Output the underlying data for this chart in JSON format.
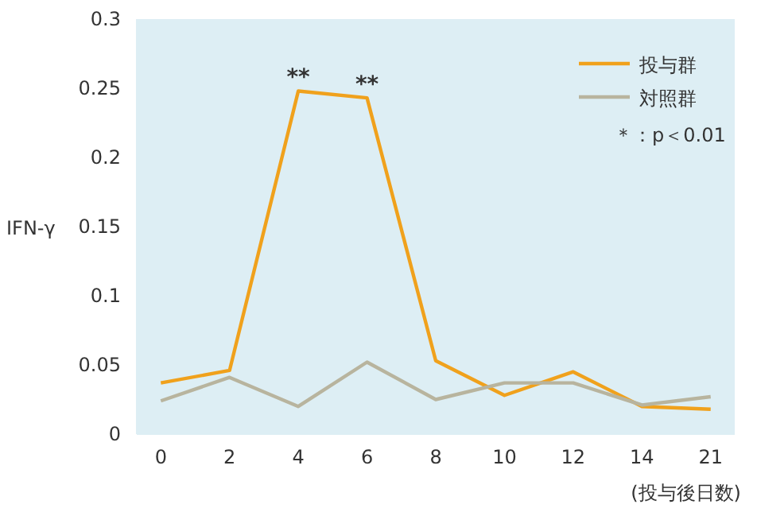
{
  "chart_data": {
    "type": "line",
    "ylabel": "IFN-γ",
    "xlabel": "(投与後日数)",
    "categories": [
      "0",
      "2",
      "4",
      "6",
      "8",
      "10",
      "12",
      "14",
      "21"
    ],
    "series": [
      {
        "name": "投与群",
        "color": "#f0a11c",
        "values": [
          0.037,
          0.046,
          0.248,
          0.243,
          0.053,
          0.028,
          0.045,
          0.02,
          0.018
        ]
      },
      {
        "name": "対照群",
        "color": "#b8b49e",
        "values": [
          0.024,
          0.041,
          0.02,
          0.052,
          0.025,
          0.037,
          0.037,
          0.021,
          0.027
        ]
      }
    ],
    "ylim": [
      0,
      0.3
    ],
    "yticks": [
      0,
      0.05,
      0.1,
      0.15,
      0.2,
      0.25,
      0.3
    ],
    "grid": false,
    "legend": "top right",
    "marker": "none",
    "line_style": "solid",
    "annotations": [
      {
        "text": "**",
        "x": "4",
        "y": 0.248
      },
      {
        "text": "**",
        "x": "6",
        "y": 0.243
      },
      "＊：p＜0.01"
    ]
  }
}
